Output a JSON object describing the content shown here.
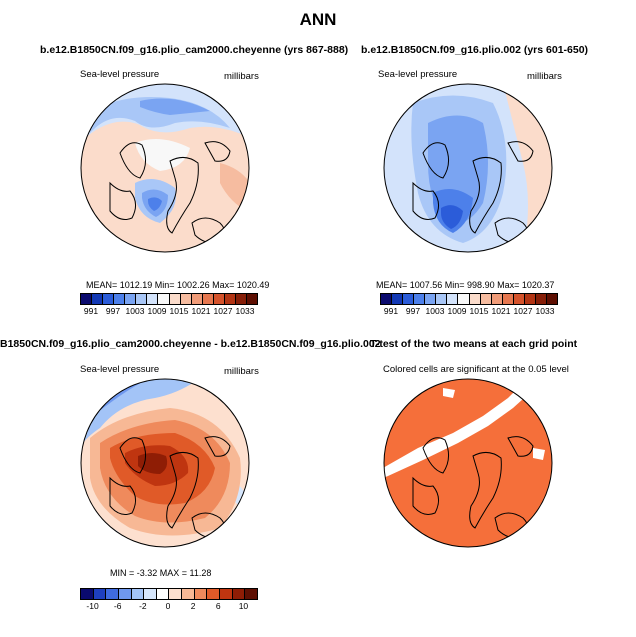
{
  "title": "ANN",
  "panels": {
    "top_left": {
      "title": "b.e12.B1850CN.f09_g16.plio_cam2000.cheyenne (yrs 867-888)",
      "left_label": "Sea-level pressure",
      "right_label": "millibars",
      "stats": "MEAN= 1012.19   Min= 1002.26   Max= 1020.49",
      "colorbar_ticks": [
        "991",
        "997",
        "1003",
        "1009",
        "1015",
        "1021",
        "1027",
        "1033"
      ]
    },
    "top_right": {
      "title": "b.e12.B1850CN.f09_g16.plio.002 (yrs 601-650)",
      "left_label": "Sea-level pressure",
      "right_label": "millibars",
      "stats": "MEAN= 1007.56   Min= 998.90   Max= 1020.37",
      "colorbar_ticks": [
        "991",
        "997",
        "1003",
        "1009",
        "1015",
        "1021",
        "1027",
        "1033"
      ]
    },
    "bottom_left": {
      "title": "B1850CN.f09_g16.plio_cam2000.cheyenne - b.e12.B1850CN.f09_g16.plio.002",
      "left_label": "Sea-level pressure",
      "right_label": "millibars",
      "stats": "MIN = -3.32  MAX =  11.28",
      "colorbar_ticks": [
        "-10",
        "-6",
        "-2",
        "0",
        "2",
        "6",
        "10"
      ]
    },
    "bottom_right": {
      "title": "T-test of the two means at each grid point",
      "label": "Colored cells are significant at the 0.05 level"
    }
  },
  "colors": {
    "abs_scale": [
      "#0a0a6e",
      "#1238b4",
      "#2b5cd9",
      "#4d80ea",
      "#7aa4f2",
      "#a9c7f7",
      "#d3e3fb",
      "#f8f8f8",
      "#fbdccb",
      "#f6bca0",
      "#f09b78",
      "#e6774f",
      "#d5532c",
      "#b23414",
      "#861e08",
      "#5e0f02"
    ],
    "diff_scale": [
      "#0a0a6e",
      "#1e3fbf",
      "#3f6be0",
      "#6f98ef",
      "#a3c4f7",
      "#d6e6fc",
      "#ffffff",
      "#fde0cf",
      "#f7b895",
      "#ef8a5c",
      "#e05a28",
      "#bf3510",
      "#8f1d05",
      "#5e0f02"
    ],
    "ttest_fill": "#f56f3a"
  }
}
